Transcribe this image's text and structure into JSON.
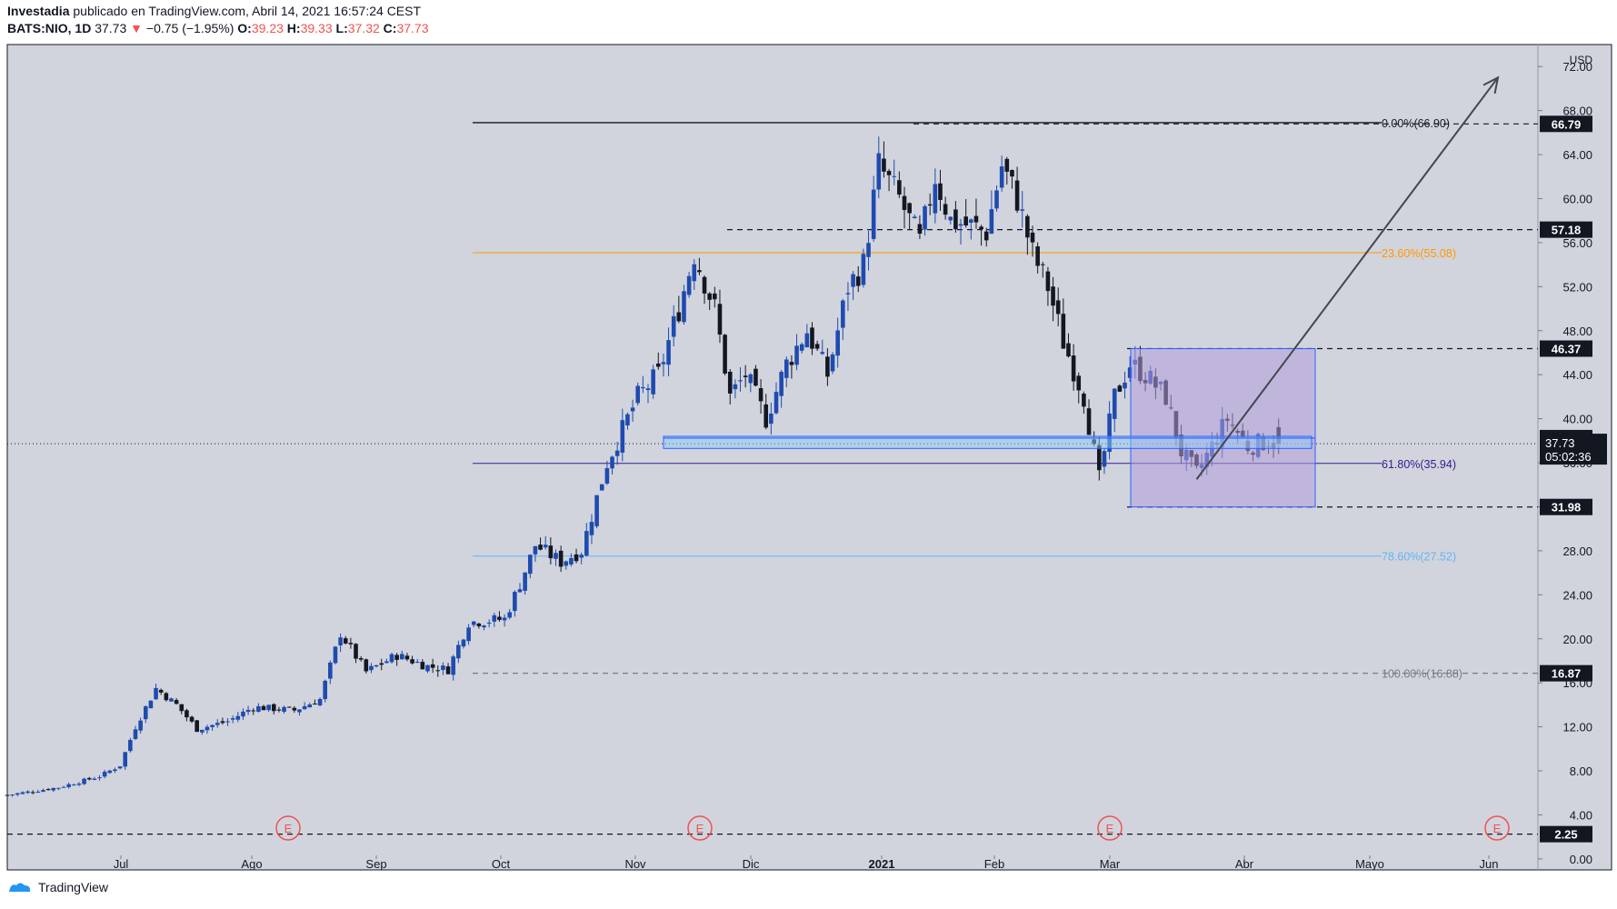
{
  "header": {
    "author": "Investadia",
    "published": "publicado en TradingView.com, Abril 14, 2021 16:57:24 CEST",
    "symbol": "BATS:NIO, 1D",
    "last": "37.73",
    "change_arrow": "▼",
    "change": "−0.75 (−1.95%)",
    "o_label": "O:",
    "o_value": "39.23",
    "h_label": "H:",
    "h_value": "39.33",
    "l_label": "L:",
    "l_value": "37.32",
    "c_label": "C:",
    "c_value": "37.73"
  },
  "footer": {
    "brand": "TradingView",
    "logo_icon": "tradingview-logo-icon"
  },
  "colors": {
    "background": "#d1d4dc",
    "bull": "#1e4bb0",
    "bear": "#131722",
    "fib_orange": "#ff9800",
    "fib_indigo": "#311b92",
    "fib_lightblue": "#64b5f6",
    "box_fill": "#b39ddb",
    "box_border": "#2962ff"
  },
  "chart_data": {
    "type": "candlestick",
    "currency": "USD",
    "y_axis": {
      "ticks": [
        "72.00",
        "68.00",
        "64.00",
        "60.00",
        "56.00",
        "52.00",
        "48.00",
        "44.00",
        "40.00",
        "36.00",
        "32.00",
        "28.00",
        "24.00",
        "20.00",
        "16.00",
        "12.00",
        "8.00",
        "4.00",
        "0.00"
      ],
      "range": [
        -1,
        74
      ]
    },
    "x_axis": {
      "labels": [
        "Jul",
        "Ago",
        "Sep",
        "Oct",
        "Nov",
        "Dic",
        "2021",
        "Feb",
        "Mar",
        "Abr",
        "Mayo",
        "Jun"
      ]
    },
    "price_labels": [
      {
        "value": 66.79,
        "text": "66.79"
      },
      {
        "value": 57.18,
        "text": "57.18"
      },
      {
        "value": 46.37,
        "text": "46.37"
      },
      {
        "value": 38.24,
        "text": "38.24"
      },
      {
        "value": 31.98,
        "text": "31.98"
      },
      {
        "value": 16.87,
        "text": "16.87"
      },
      {
        "value": 2.25,
        "text": "2.25"
      }
    ],
    "last_price": {
      "value": 37.73,
      "text": "37.73",
      "countdown": "05:02:36"
    },
    "fibonacci": [
      {
        "level": 66.9,
        "text": "0.00%(66.90)",
        "color": "#131722"
      },
      {
        "level": 55.08,
        "text": "23.60%(55.08)",
        "color": "#ff9800"
      },
      {
        "level": 35.94,
        "text": "61.80%(35.94)",
        "color": "#311b92"
      },
      {
        "level": 27.52,
        "text": "78.60%(27.52)",
        "color": "#64b5f6"
      },
      {
        "level": 16.88,
        "text": "100.00%(16.88)",
        "color": "#787b86"
      }
    ],
    "earnings_markers": [
      "E",
      "E",
      "E",
      "E"
    ],
    "anchors": [
      {
        "t": 0,
        "p": 5.8
      },
      {
        "t": 10,
        "p": 6.5
      },
      {
        "t": 18,
        "p": 7.5
      },
      {
        "t": 22,
        "p": 8.5
      },
      {
        "t": 25,
        "p": 12
      },
      {
        "t": 29,
        "p": 15.5
      },
      {
        "t": 33,
        "p": 14
      },
      {
        "t": 37,
        "p": 11.8
      },
      {
        "t": 43,
        "p": 12.5
      },
      {
        "t": 48,
        "p": 13.8
      },
      {
        "t": 56,
        "p": 13.5
      },
      {
        "t": 61,
        "p": 14.5
      },
      {
        "t": 65,
        "p": 20.5
      },
      {
        "t": 70,
        "p": 17
      },
      {
        "t": 76,
        "p": 18.5
      },
      {
        "t": 82,
        "p": 17.5
      },
      {
        "t": 86,
        "p": 17.2
      },
      {
        "t": 90,
        "p": 21.5
      },
      {
        "t": 97,
        "p": 21.8
      },
      {
        "t": 100,
        "p": 25
      },
      {
        "t": 103,
        "p": 28.5
      },
      {
        "t": 108,
        "p": 27
      },
      {
        "t": 112,
        "p": 28
      },
      {
        "t": 117,
        "p": 36
      },
      {
        "t": 121,
        "p": 40
      },
      {
        "t": 123,
        "p": 42
      },
      {
        "t": 127,
        "p": 44
      },
      {
        "t": 131,
        "p": 50
      },
      {
        "t": 134,
        "p": 55
      },
      {
        "t": 138,
        "p": 50
      },
      {
        "t": 141,
        "p": 42
      },
      {
        "t": 144,
        "p": 44
      },
      {
        "t": 148,
        "p": 40
      },
      {
        "t": 152,
        "p": 45
      },
      {
        "t": 156,
        "p": 48
      },
      {
        "t": 160,
        "p": 44
      },
      {
        "t": 164,
        "p": 52
      },
      {
        "t": 167,
        "p": 54
      },
      {
        "t": 170,
        "p": 63
      },
      {
        "t": 174,
        "p": 60
      },
      {
        "t": 178,
        "p": 56
      },
      {
        "t": 181,
        "p": 62
      },
      {
        "t": 184,
        "p": 58
      },
      {
        "t": 188,
        "p": 57.5
      },
      {
        "t": 191,
        "p": 57
      },
      {
        "t": 194,
        "p": 63
      },
      {
        "t": 197,
        "p": 60
      },
      {
        "t": 200,
        "p": 55
      },
      {
        "t": 203,
        "p": 52
      },
      {
        "t": 206,
        "p": 47
      },
      {
        "t": 210,
        "p": 42
      },
      {
        "t": 213,
        "p": 34.5
      },
      {
        "t": 216,
        "p": 42
      },
      {
        "t": 219,
        "p": 45
      },
      {
        "t": 222,
        "p": 44
      },
      {
        "t": 226,
        "p": 42
      },
      {
        "t": 229,
        "p": 37
      },
      {
        "t": 232,
        "p": 35
      },
      {
        "t": 235,
        "p": 37.5
      },
      {
        "t": 238,
        "p": 40
      },
      {
        "t": 242,
        "p": 37.5
      },
      {
        "t": 246,
        "p": 38
      },
      {
        "t": 248,
        "p": 37.73
      }
    ]
  }
}
